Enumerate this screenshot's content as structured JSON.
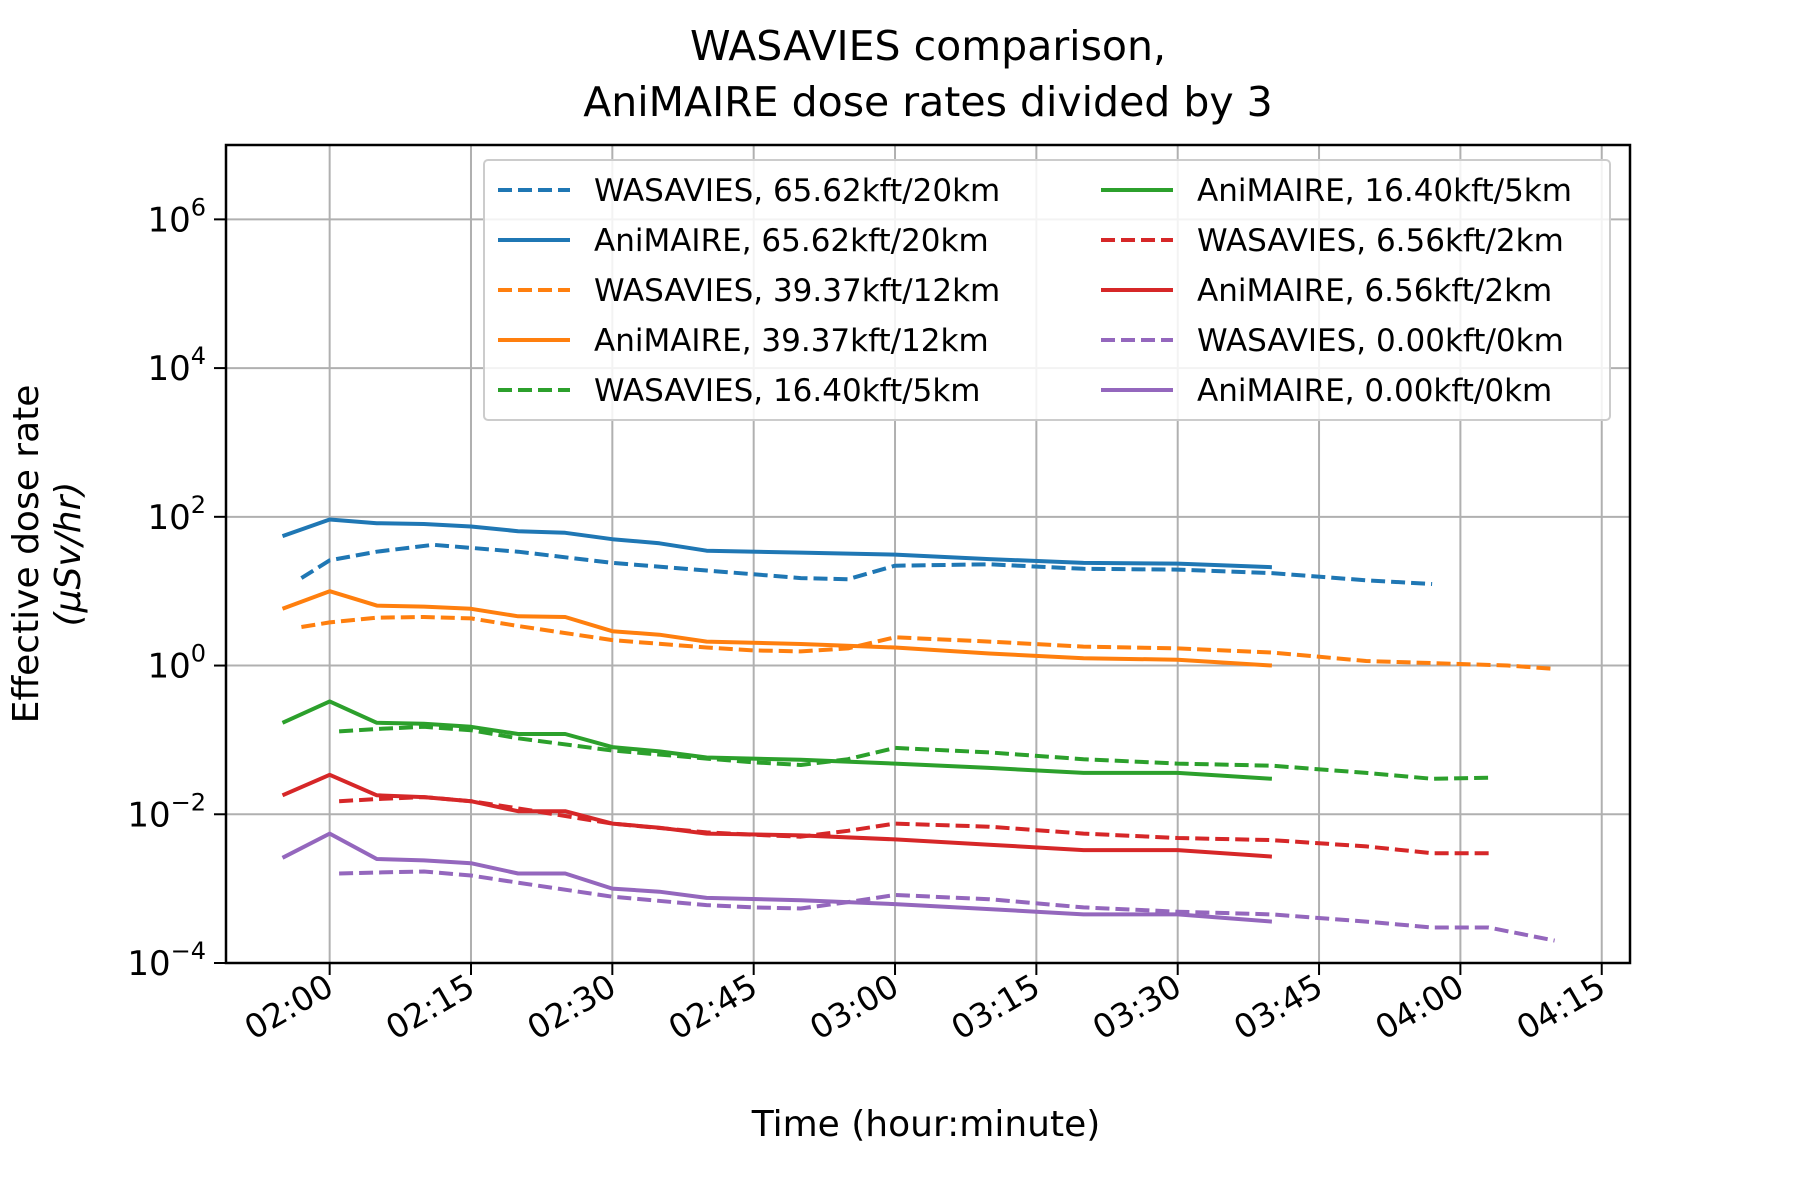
{
  "chart_data": {
    "type": "line",
    "title": [
      "WASAVIES comparison,",
      "AniMAIRE dose rates divided by 3"
    ],
    "xlabel": "Time (hour:minute)",
    "ylabel": [
      "Effective dose rate",
      "(μSv/hr)"
    ],
    "yscale": "log",
    "ylim": [
      0.0001,
      10000000
    ],
    "xlim": [
      "01:49",
      "04:18"
    ],
    "grid": true,
    "legend_position": "upper right, 2 columns",
    "xticks": [
      "02:00",
      "02:15",
      "02:30",
      "02:45",
      "03:00",
      "03:15",
      "03:30",
      "03:45",
      "04:00",
      "04:15"
    ],
    "yticks": [
      {
        "value": 0.0001,
        "base": "10",
        "exp": "−4"
      },
      {
        "value": 0.01,
        "base": "10",
        "exp": "−2"
      },
      {
        "value": 1,
        "base": "10",
        "exp": "0"
      },
      {
        "value": 100,
        "base": "10",
        "exp": "2"
      },
      {
        "value": 10000,
        "base": "10",
        "exp": "4"
      },
      {
        "value": 1000000,
        "base": "10",
        "exp": "6"
      }
    ],
    "series": [
      {
        "name": "WASAVIES, 65.62kft/20km",
        "color": "#1f77b4",
        "style": "dashed",
        "x": [
          "01:57",
          "02:00",
          "02:05",
          "02:11",
          "02:20",
          "02:30",
          "02:40",
          "02:50",
          "02:55",
          "03:00",
          "03:10",
          "03:20",
          "03:30",
          "03:40",
          "03:50",
          "03:57"
        ],
        "y": [
          15,
          26,
          34,
          42,
          34,
          24,
          19,
          15,
          14.5,
          22,
          23,
          20,
          19.5,
          17.5,
          14,
          12.5
        ]
      },
      {
        "name": "AniMAIRE, 65.62kft/20km",
        "color": "#1f77b4",
        "style": "solid",
        "x": [
          "01:55",
          "02:00",
          "02:05",
          "02:10",
          "02:15",
          "02:20",
          "02:25",
          "02:30",
          "02:35",
          "02:40",
          "02:50",
          "03:00",
          "03:10",
          "03:20",
          "03:30",
          "03:40"
        ],
        "y": [
          55,
          92,
          82,
          80,
          74,
          64,
          61,
          50,
          44,
          35,
          33,
          31,
          27,
          24,
          23.5,
          21
        ]
      },
      {
        "name": "WASAVIES, 39.37kft/12km",
        "color": "#ff7f0e",
        "style": "dashed",
        "x": [
          "01:57",
          "02:00",
          "02:05",
          "02:10",
          "02:15",
          "02:20",
          "02:30",
          "02:40",
          "02:45",
          "02:50",
          "02:55",
          "03:00",
          "03:10",
          "03:20",
          "03:30",
          "03:40",
          "03:50",
          "04:00",
          "04:05",
          "04:10"
        ],
        "y": [
          3.3,
          3.8,
          4.4,
          4.5,
          4.3,
          3.4,
          2.2,
          1.75,
          1.6,
          1.55,
          1.7,
          2.4,
          2.1,
          1.8,
          1.7,
          1.5,
          1.15,
          1.05,
          1.0,
          0.9
        ]
      },
      {
        "name": "AniMAIRE, 39.37kft/12km",
        "color": "#ff7f0e",
        "style": "solid",
        "x": [
          "01:55",
          "02:00",
          "02:05",
          "02:10",
          "02:15",
          "02:20",
          "02:25",
          "02:30",
          "02:35",
          "02:40",
          "02:50",
          "03:00",
          "03:10",
          "03:20",
          "03:30",
          "03:40"
        ],
        "y": [
          5.8,
          10,
          6.4,
          6.2,
          5.8,
          4.6,
          4.5,
          2.9,
          2.6,
          2.1,
          1.95,
          1.75,
          1.45,
          1.25,
          1.2,
          1.0
        ]
      },
      {
        "name": "WASAVIES, 16.40kft/5km",
        "color": "#2ca02c",
        "style": "dashed",
        "x": [
          "02:01",
          "02:05",
          "02:10",
          "02:15",
          "02:20",
          "02:30",
          "02:40",
          "02:45",
          "02:50",
          "02:55",
          "03:00",
          "03:10",
          "03:20",
          "03:30",
          "03:40",
          "03:50",
          "03:57",
          "04:03"
        ],
        "y": [
          0.13,
          0.14,
          0.15,
          0.135,
          0.105,
          0.072,
          0.056,
          0.05,
          0.046,
          0.055,
          0.078,
          0.068,
          0.055,
          0.048,
          0.045,
          0.036,
          0.03,
          0.031
        ]
      },
      {
        "name": "AniMAIRE, 16.40kft/5km",
        "color": "#2ca02c",
        "style": "solid",
        "x": [
          "01:55",
          "02:00",
          "02:05",
          "02:10",
          "02:15",
          "02:20",
          "02:25",
          "02:30",
          "02:35",
          "02:40",
          "02:50",
          "03:00",
          "03:10",
          "03:20",
          "03:30",
          "03:40"
        ],
        "y": [
          0.17,
          0.33,
          0.17,
          0.165,
          0.15,
          0.12,
          0.12,
          0.08,
          0.07,
          0.058,
          0.054,
          0.048,
          0.042,
          0.036,
          0.036,
          0.03
        ]
      },
      {
        "name": "WASAVIES, 6.56kft/2km",
        "color": "#d62728",
        "style": "dashed",
        "x": [
          "02:01",
          "02:05",
          "02:10",
          "02:15",
          "02:20",
          "02:30",
          "02:40",
          "02:45",
          "02:50",
          "02:55",
          "03:00",
          "03:10",
          "03:20",
          "03:30",
          "03:40",
          "03:50",
          "03:57",
          "04:03"
        ],
        "y": [
          0.015,
          0.016,
          0.017,
          0.015,
          0.012,
          0.0075,
          0.0057,
          0.0053,
          0.005,
          0.006,
          0.0075,
          0.0068,
          0.0055,
          0.0048,
          0.0045,
          0.0037,
          0.003,
          0.003
        ]
      },
      {
        "name": "AniMAIRE, 6.56kft/2km",
        "color": "#d62728",
        "style": "solid",
        "x": [
          "01:55",
          "02:00",
          "02:05",
          "02:10",
          "02:15",
          "02:20",
          "02:25",
          "02:30",
          "02:35",
          "02:40",
          "02:50",
          "03:00",
          "03:10",
          "03:20",
          "03:30",
          "03:40"
        ],
        "y": [
          0.018,
          0.034,
          0.018,
          0.017,
          0.015,
          0.011,
          0.011,
          0.0075,
          0.0066,
          0.0055,
          0.0052,
          0.0046,
          0.0039,
          0.0033,
          0.0033,
          0.0027
        ]
      },
      {
        "name": "WASAVIES, 0.00kft/0km",
        "color": "#9467bd",
        "style": "dashed",
        "x": [
          "02:01",
          "02:05",
          "02:10",
          "02:15",
          "02:20",
          "02:30",
          "02:40",
          "02:45",
          "02:50",
          "02:55",
          "03:00",
          "03:10",
          "03:20",
          "03:30",
          "03:40",
          "03:50",
          "03:57",
          "04:03",
          "04:10"
        ],
        "y": [
          0.0016,
          0.00165,
          0.0017,
          0.0015,
          0.0012,
          0.00078,
          0.0006,
          0.00056,
          0.00054,
          0.00066,
          0.00082,
          0.00072,
          0.00056,
          0.00049,
          0.00045,
          0.00036,
          0.0003,
          0.0003,
          0.0002
        ]
      },
      {
        "name": "AniMAIRE, 0.00kft/0km",
        "color": "#9467bd",
        "style": "solid",
        "x": [
          "01:55",
          "02:00",
          "02:05",
          "02:10",
          "02:15",
          "02:20",
          "02:25",
          "02:30",
          "02:35",
          "02:40",
          "02:50",
          "03:00",
          "03:10",
          "03:20",
          "03:30",
          "03:40"
        ],
        "y": [
          0.0026,
          0.0055,
          0.0025,
          0.0024,
          0.0022,
          0.0016,
          0.0016,
          0.001,
          0.00091,
          0.00075,
          0.0007,
          0.00062,
          0.00053,
          0.00045,
          0.00045,
          0.00036
        ]
      }
    ]
  }
}
